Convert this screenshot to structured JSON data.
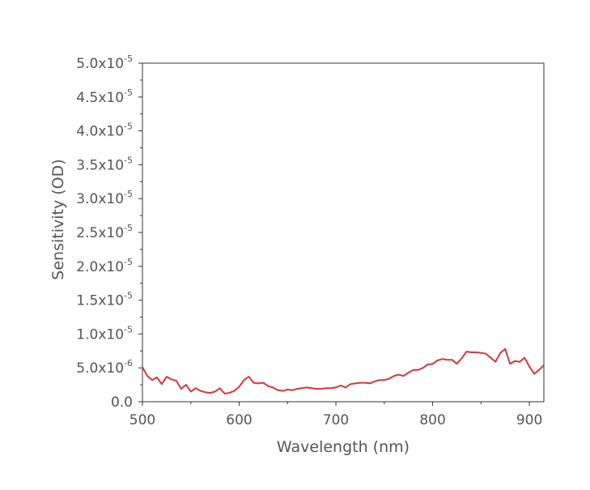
{
  "chart_data": {
    "type": "line",
    "title": "",
    "xlabel": "Wavelength (nm)",
    "ylabel": "Sensitivity (OD)",
    "xlim": [
      500,
      915
    ],
    "ylim": [
      0,
      5e-05
    ],
    "grid": false,
    "legend": "none",
    "line_color": "#d9363e",
    "x_ticks": [
      {
        "value": 500,
        "label": "500"
      },
      {
        "value": 600,
        "label": "600"
      },
      {
        "value": 700,
        "label": "700"
      },
      {
        "value": 800,
        "label": "800"
      },
      {
        "value": 900,
        "label": "900"
      }
    ],
    "y_ticks": [
      {
        "value": 0,
        "label": "0.0",
        "exp": ""
      },
      {
        "value": 5e-06,
        "label": "5.0x10",
        "exp": "-6"
      },
      {
        "value": 1e-05,
        "label": "1.0x10",
        "exp": "-5"
      },
      {
        "value": 1.5e-05,
        "label": "1.5x10",
        "exp": "-5"
      },
      {
        "value": 2e-05,
        "label": "2.0x10",
        "exp": "-5"
      },
      {
        "value": 2.5e-05,
        "label": "2.5x10",
        "exp": "-5"
      },
      {
        "value": 3e-05,
        "label": "3.0x10",
        "exp": "-5"
      },
      {
        "value": 3.5e-05,
        "label": "3.5x10",
        "exp": "-5"
      },
      {
        "value": 4e-05,
        "label": "4.0x10",
        "exp": "-5"
      },
      {
        "value": 4.5e-05,
        "label": "4.5x10",
        "exp": "-5"
      },
      {
        "value": 5e-05,
        "label": "5.0x10",
        "exp": "-5"
      }
    ],
    "series": [
      {
        "x": [
          500,
          505,
          510,
          515,
          520,
          525,
          530,
          535,
          540,
          545,
          550,
          555,
          560,
          565,
          570,
          575,
          580,
          585,
          590,
          595,
          600,
          605,
          610,
          615,
          620,
          625,
          630,
          635,
          640,
          645,
          650,
          655,
          660,
          665,
          670,
          675,
          680,
          685,
          690,
          695,
          700,
          705,
          710,
          715,
          720,
          725,
          730,
          735,
          740,
          745,
          750,
          755,
          760,
          765,
          770,
          775,
          780,
          785,
          790,
          795,
          800,
          805,
          810,
          815,
          820,
          825,
          830,
          835,
          840,
          845,
          850,
          855,
          860,
          865,
          870,
          875,
          880,
          885,
          890,
          895,
          900,
          905,
          910,
          915
        ],
        "values": [
          5.1e-06,
          3.8e-06,
          3.2e-06,
          3.6e-06,
          2.6e-06,
          3.7e-06,
          3.3e-06,
          3.1e-06,
          1.9e-06,
          2.5e-06,
          1.5e-06,
          2e-06,
          1.6e-06,
          1.4e-06,
          1.3e-06,
          1.5e-06,
          2e-06,
          1.2e-06,
          1.3e-06,
          1.6e-06,
          2.2e-06,
          3.2e-06,
          3.7e-06,
          2.8e-06,
          2.7e-06,
          2.8e-06,
          2.3e-06,
          2.1e-06,
          1.7e-06,
          1.6e-06,
          1.8e-06,
          1.7e-06,
          1.9e-06,
          2e-06,
          2.1e-06,
          2e-06,
          1.9e-06,
          1.9e-06,
          2e-06,
          2e-06,
          2.1e-06,
          2.4e-06,
          2.1e-06,
          2.6e-06,
          2.7e-06,
          2.8e-06,
          2.8e-06,
          2.7e-06,
          3e-06,
          3.2e-06,
          3.2e-06,
          3.4e-06,
          3.8e-06,
          4e-06,
          3.8e-06,
          4.3e-06,
          4.7e-06,
          4.7e-06,
          5e-06,
          5.5e-06,
          5.6e-06,
          6.1e-06,
          6.3e-06,
          6.2e-06,
          6.2e-06,
          5.6e-06,
          6.4e-06,
          7.4e-06,
          7.3e-06,
          7.3e-06,
          7.2e-06,
          7.1e-06,
          6.5e-06,
          5.9e-06,
          7.2e-06,
          7.8e-06,
          5.6e-06,
          6e-06,
          5.9e-06,
          6.5e-06,
          5.2e-06,
          4.1e-06,
          4.7e-06,
          5.4e-06
        ]
      }
    ]
  }
}
